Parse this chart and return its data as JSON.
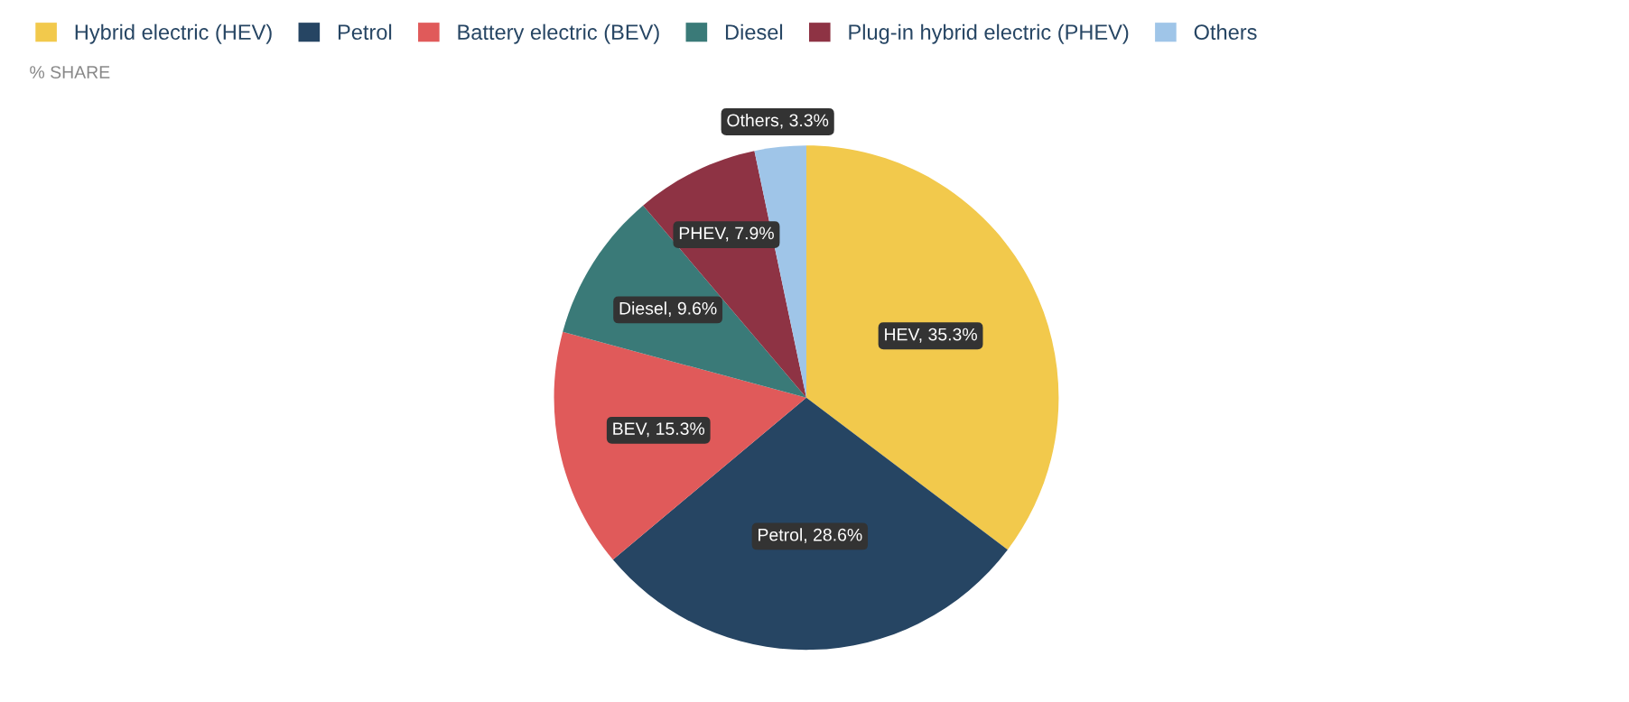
{
  "chart_data": {
    "type": "pie",
    "subtitle": "% SHARE",
    "categories": [
      "Hybrid electric (HEV)",
      "Petrol",
      "Battery electric (BEV)",
      "Diesel",
      "Plug-in hybrid electric (PHEV)",
      "Others"
    ],
    "values": [
      35.3,
      28.6,
      15.3,
      9.6,
      7.9,
      3.3
    ],
    "colors": [
      "#f2c94c",
      "#264563",
      "#e05a5a",
      "#3a7a78",
      "#8e3344",
      "#9fc5e8"
    ],
    "value_labels": [
      "HEV, 35.3%",
      "Petrol, 28.6%",
      "BEV, 15.3%",
      "Diesel, 9.6%",
      "PHEV, 7.9%",
      "Others, 3.3%"
    ],
    "legend": "top left"
  }
}
